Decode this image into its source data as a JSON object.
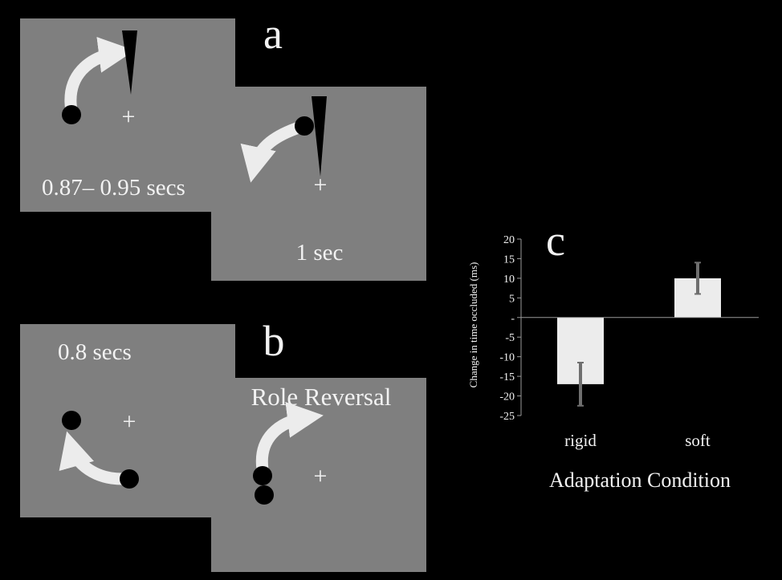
{
  "panel_a": {
    "letter": "a",
    "frame1_caption": "0.87– 0.95 secs",
    "frame2_caption": "1 sec",
    "fixation": "+"
  },
  "panel_b": {
    "letter": "b",
    "frame1_caption": "0.8 secs",
    "frame2_title": "Role Reversal",
    "fixation": "+"
  },
  "panel_c": {
    "letter": "c",
    "chart_data": {
      "type": "bar",
      "categories": [
        "rigid",
        "soft"
      ],
      "values": [
        -17,
        10
      ],
      "errors": [
        5.5,
        4
      ],
      "ylim": [
        -25,
        20
      ],
      "yticks": [
        "20",
        "15",
        "10",
        "5",
        "-",
        "-5",
        "-10",
        "-15",
        "-20",
        "-25"
      ],
      "ylabel": "Change in time occluded  (ms)",
      "xlabel": "Adaptation Condition",
      "grid": false
    }
  },
  "colors": {
    "background": "#000000",
    "frame": "#7f7f7f",
    "text": "#f2f2f2",
    "arrow": "#ececec",
    "ball": "#000000",
    "bar_fill": "#ececec",
    "error_bar": "#6f6f6f"
  }
}
